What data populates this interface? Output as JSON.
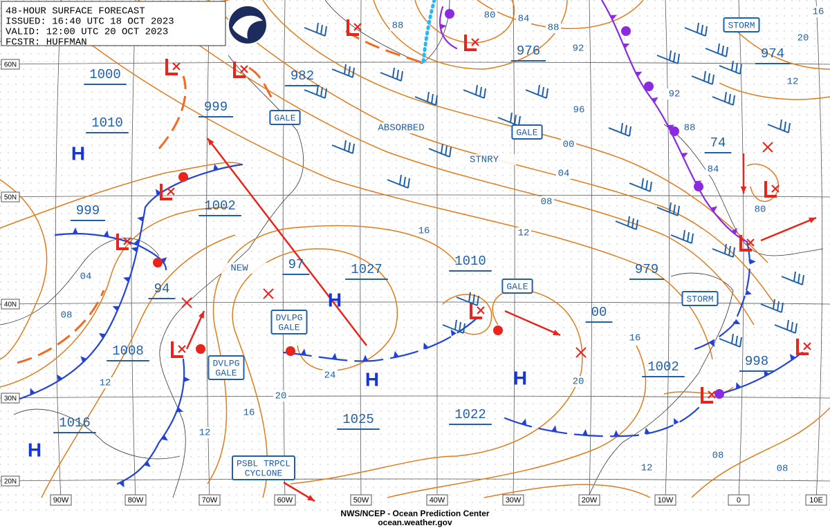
{
  "header": {
    "lines": [
      "48-HOUR SURFACE FORECAST",
      "ISSUED: 16:40 UTC 18 OCT 2023",
      "VALID:  12:00 UTC 20 OCT 2023",
      "FCSTR: HUFFMAN"
    ]
  },
  "lat_labels": [
    "60N",
    "50N",
    "40N",
    "30N",
    "20N"
  ],
  "lon_labels": [
    "90W",
    "80W",
    "70W",
    "60W",
    "50W",
    "40W",
    "30W",
    "20W",
    "10W",
    "0",
    "10E"
  ],
  "pressure_labels": [
    "1000",
    "1010",
    "999",
    "982",
    "976",
    "974",
    "999",
    "1002",
    "97",
    "1027",
    "1010",
    "979",
    "94",
    "00",
    "1008",
    "1002",
    "998",
    "1016",
    "1025",
    "1022",
    "74"
  ],
  "isobar_labels": [
    "88",
    "80",
    "84",
    "88",
    "92",
    "16",
    "20",
    "12",
    "92",
    "96",
    "88",
    "00",
    "84",
    "04",
    "08",
    "80",
    "16",
    "12",
    "04",
    "08",
    "16",
    "24",
    "20",
    "12",
    "20",
    "16",
    "12",
    "08",
    "12",
    "08"
  ],
  "boxes": [
    [
      "STORM"
    ],
    [
      "GALE"
    ],
    [
      "GALE"
    ],
    [
      "GALE"
    ],
    [
      "STORM"
    ],
    [
      "DVLPG",
      "GALE"
    ],
    [
      "DVLPG",
      "GALE"
    ],
    [
      "PSBL TRPCL",
      "CYCLONE"
    ]
  ],
  "notes": [
    "ABSORBED",
    "STNRY",
    "NEW"
  ],
  "highs": [
    "H",
    "H",
    "H",
    "H",
    "H"
  ],
  "footer": [
    "NWS/NCEP - Ocean Prediction Center",
    "ocean.weather.gov"
  ]
}
